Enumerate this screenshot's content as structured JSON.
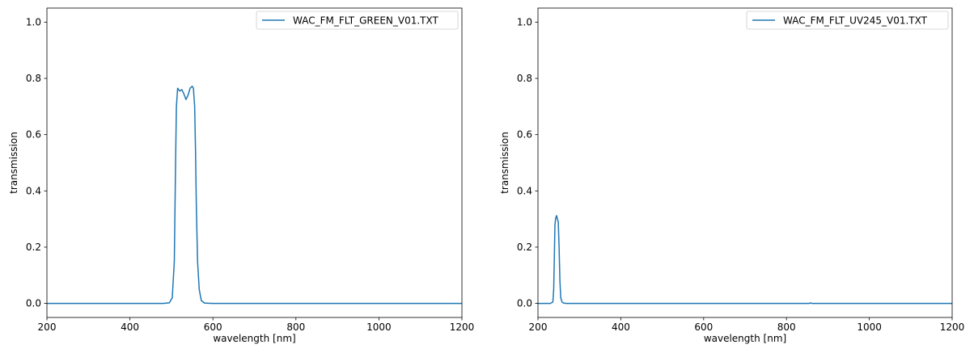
{
  "chart_data": [
    {
      "type": "line",
      "title": "",
      "xlabel": "wavelength [nm]",
      "ylabel": "transmission",
      "xlim": [
        200,
        1200
      ],
      "ylim": [
        -0.05,
        1.05
      ],
      "xticks": [
        200,
        400,
        600,
        800,
        1000,
        1200
      ],
      "xtick_labels": [
        "200",
        "400",
        "600",
        "800",
        "1000",
        "1200"
      ],
      "yticks": [
        0.0,
        0.2,
        0.4,
        0.6,
        0.8,
        1.0
      ],
      "ytick_labels": [
        "0.0",
        "0.2",
        "0.4",
        "0.6",
        "0.8",
        "1.0"
      ],
      "grid": false,
      "legend_position": "top-right",
      "series": [
        {
          "name": "WAC_FM_FLT_GREEN_V01.TXT",
          "color": "#1f77b4",
          "x": [
            200,
            300,
            400,
            480,
            495,
            502,
            507,
            510,
            512,
            515,
            520,
            525,
            530,
            535,
            540,
            545,
            550,
            553,
            556,
            558,
            560,
            563,
            567,
            572,
            580,
            600,
            700,
            800,
            900,
            1000,
            1100,
            1200
          ],
          "y": [
            0.0,
            0.0,
            0.0,
            0.0,
            0.002,
            0.02,
            0.15,
            0.5,
            0.7,
            0.765,
            0.755,
            0.76,
            0.745,
            0.725,
            0.74,
            0.765,
            0.772,
            0.765,
            0.7,
            0.55,
            0.35,
            0.15,
            0.05,
            0.01,
            0.001,
            0.0,
            0.0,
            0.0,
            0.0,
            0.0,
            0.0,
            0.0
          ]
        }
      ]
    },
    {
      "type": "line",
      "title": "",
      "xlabel": "wavelength [nm]",
      "ylabel": "transmission",
      "xlim": [
        200,
        1200
      ],
      "ylim": [
        -0.05,
        1.05
      ],
      "xticks": [
        200,
        400,
        600,
        800,
        1000,
        1200
      ],
      "xtick_labels": [
        "200",
        "400",
        "600",
        "800",
        "1000",
        "1200"
      ],
      "yticks": [
        0.0,
        0.2,
        0.4,
        0.6,
        0.8,
        1.0
      ],
      "ytick_labels": [
        "0.0",
        "0.2",
        "0.4",
        "0.6",
        "0.8",
        "1.0"
      ],
      "grid": false,
      "legend_position": "top-right",
      "series": [
        {
          "name": "WAC_FM_FLT_UV245_V01.TXT",
          "color": "#1f77b4",
          "x": [
            200,
            230,
            236,
            238,
            240,
            241,
            243,
            245,
            247,
            249,
            251,
            253,
            255,
            258,
            262,
            270,
            300,
            400,
            500,
            600,
            700,
            800,
            855,
            858,
            861,
            900,
            1000,
            1100,
            1200
          ],
          "y": [
            0.0,
            0.0,
            0.005,
            0.05,
            0.2,
            0.28,
            0.305,
            0.312,
            0.3,
            0.29,
            0.2,
            0.08,
            0.02,
            0.005,
            0.001,
            0.0,
            0.0,
            0.0,
            0.0,
            0.0,
            0.0,
            0.0,
            0.0,
            0.002,
            0.0,
            0.0,
            0.0,
            0.0,
            0.0
          ]
        }
      ]
    }
  ]
}
